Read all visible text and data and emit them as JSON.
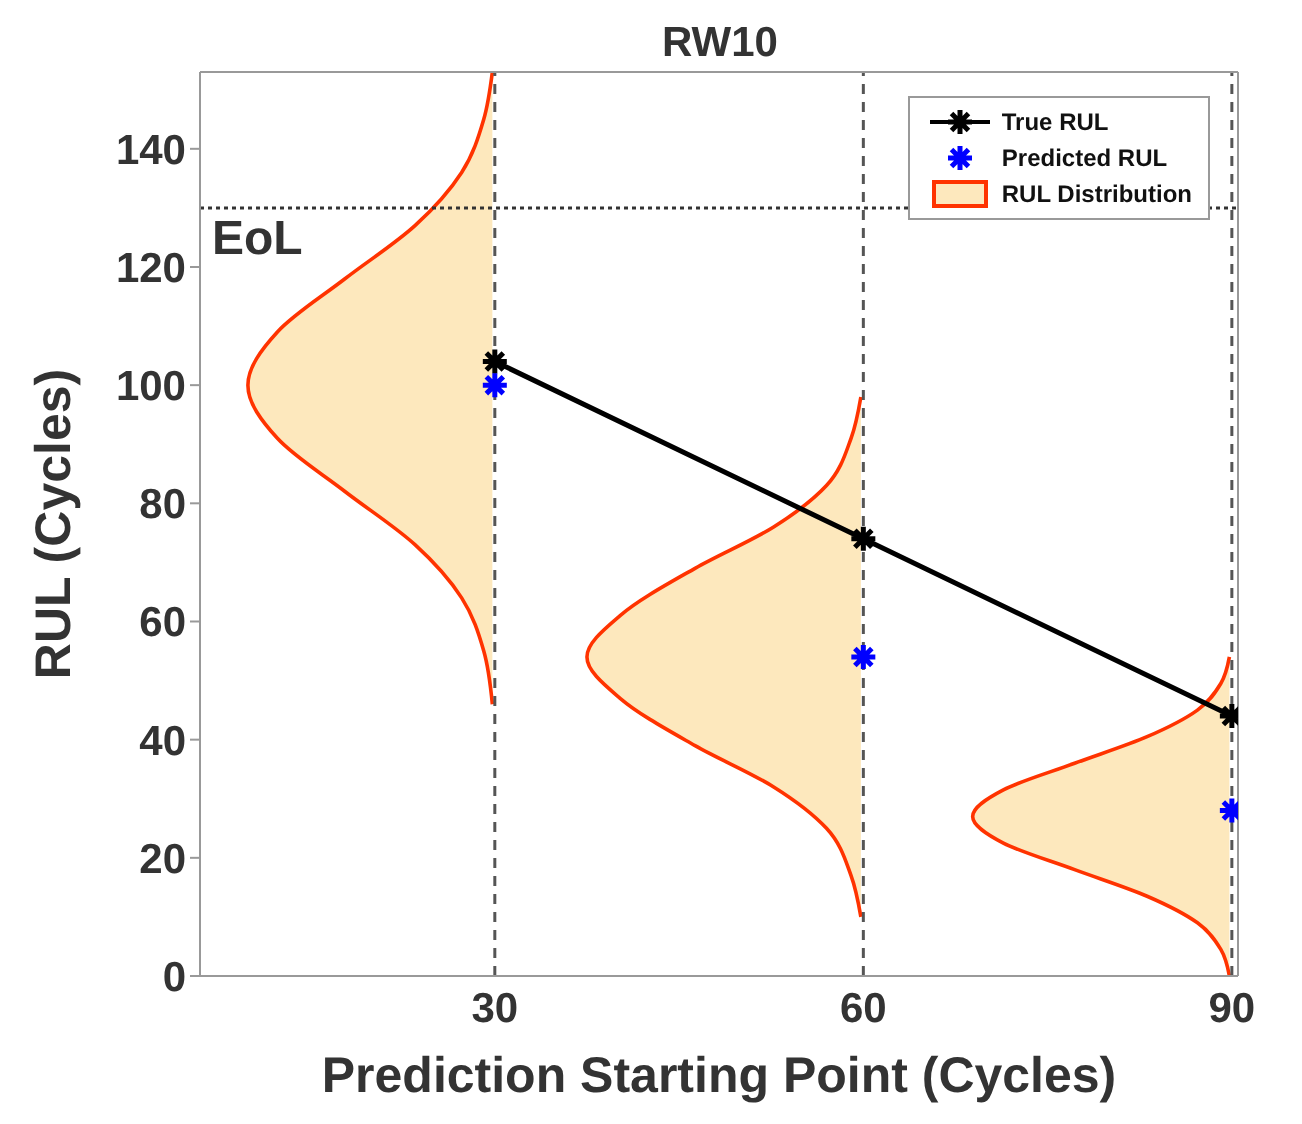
{
  "chart_data": {
    "type": "line",
    "title": "RW10",
    "xlabel": "Prediction Starting Point (Cycles)",
    "ylabel": "RUL (Cycles)",
    "xlim": [
      6,
      90.5
    ],
    "xticks": [
      30,
      60,
      90
    ],
    "ylim": [
      0,
      153
    ],
    "yticks": [
      0,
      20,
      40,
      60,
      80,
      100,
      120,
      140
    ],
    "grid": false,
    "legend": "top right",
    "series": [
      {
        "name": "True RUL",
        "color": "#000000",
        "marker": "cross",
        "line_style": "solid",
        "x": [
          30,
          60,
          90
        ],
        "values": [
          104,
          74,
          44
        ]
      },
      {
        "name": "Predicted RUL",
        "type": "scatter",
        "color": "#0000ff",
        "marker": "cross",
        "x": [
          30,
          60,
          90
        ],
        "values": [
          100,
          54,
          28
        ]
      },
      {
        "name": "RUL Distribution",
        "type": "area",
        "color": "#fde8bd",
        "x": [
          29.8,
          29.1,
          27.3,
          23.5,
          17.8,
          12.3,
          9.9,
          12.3,
          17.8,
          23.5,
          27.3,
          29.1,
          29.8
        ],
        "values": [
          46,
          55,
          64,
          73,
          82,
          91,
          100,
          109,
          118,
          127,
          136,
          145,
          153
        ]
      },
      {
        "type": "area",
        "color": "#fde8bd",
        "x": [
          59.8,
          59.0,
          57.0,
          52.7,
          46.3,
          40.2,
          37.5,
          40.2,
          46.3,
          52.7,
          57.0,
          59.0,
          59.8
        ],
        "values": [
          10,
          17,
          25,
          32,
          39,
          47,
          54,
          61,
          69,
          76,
          83,
          91,
          98
        ]
      },
      {
        "type": "area",
        "color": "#fde8bd",
        "x": [
          89.8,
          89.1,
          87.2,
          83.1,
          77.2,
          71.4,
          68.9,
          71.4,
          77.2,
          83.1,
          87.2,
          89.1,
          89.8
        ],
        "values": [
          0,
          4.5,
          9,
          13.5,
          18,
          22.5,
          27,
          31.5,
          36,
          40.5,
          45,
          49.5,
          54
        ]
      }
    ],
    "ref_lines": [
      {
        "axis": "y",
        "value": 130,
        "label": "EoL",
        "line_style": "dotted",
        "color": "#333333"
      },
      {
        "axis": "x",
        "value": 30,
        "line_style": "dashed",
        "color": "#555555"
      },
      {
        "axis": "x",
        "value": 60,
        "line_style": "dashed",
        "color": "#555555"
      },
      {
        "axis": "x",
        "value": 90,
        "line_style": "dashed",
        "color": "#555555"
      }
    ]
  }
}
